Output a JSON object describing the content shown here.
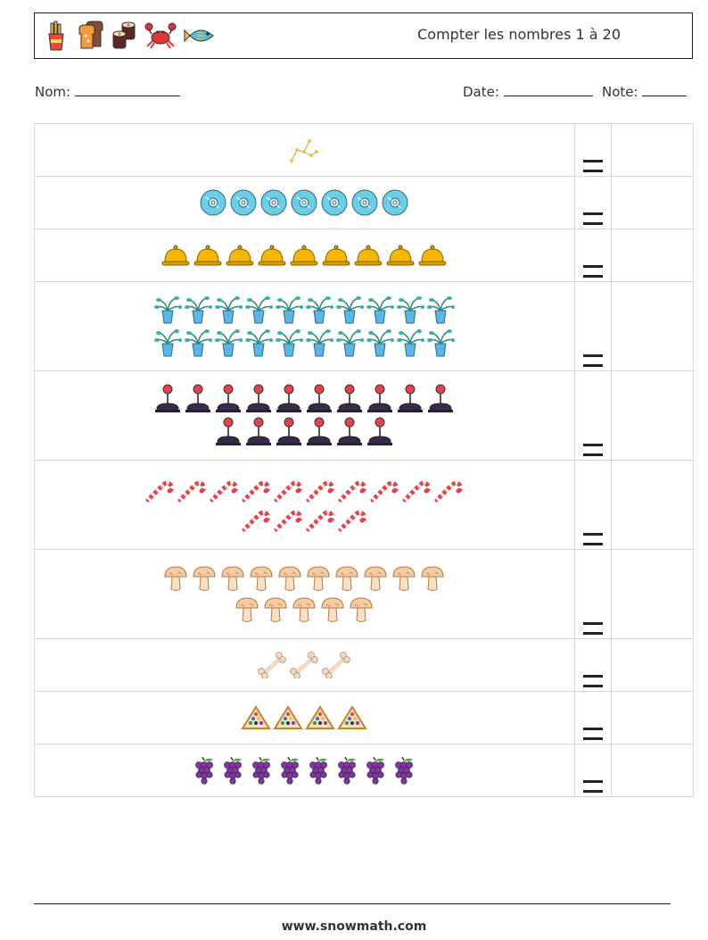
{
  "header": {
    "title": "Compter les nombres 1 à 20",
    "icons": [
      "fries-icon",
      "toast-icon",
      "sushi-roll-icon",
      "crab-icon",
      "fish-icon"
    ]
  },
  "fields": {
    "name_label": "Nom:",
    "date_label": "Date:",
    "note_label": "Note:"
  },
  "rows": [
    {
      "icon": "constellation",
      "count": 1
    },
    {
      "icon": "cd-disc",
      "count": 7
    },
    {
      "icon": "service-bell",
      "count": 9
    },
    {
      "icon": "water-plant",
      "count": 20
    },
    {
      "icon": "joystick",
      "count": 16
    },
    {
      "icon": "candy-cane",
      "count": 14
    },
    {
      "icon": "mushroom",
      "count": 15
    },
    {
      "icon": "bone",
      "count": 3
    },
    {
      "icon": "billiard-rack",
      "count": 4
    },
    {
      "icon": "grapes",
      "count": 8
    }
  ],
  "footer": {
    "website": "www.snowmath.com"
  }
}
